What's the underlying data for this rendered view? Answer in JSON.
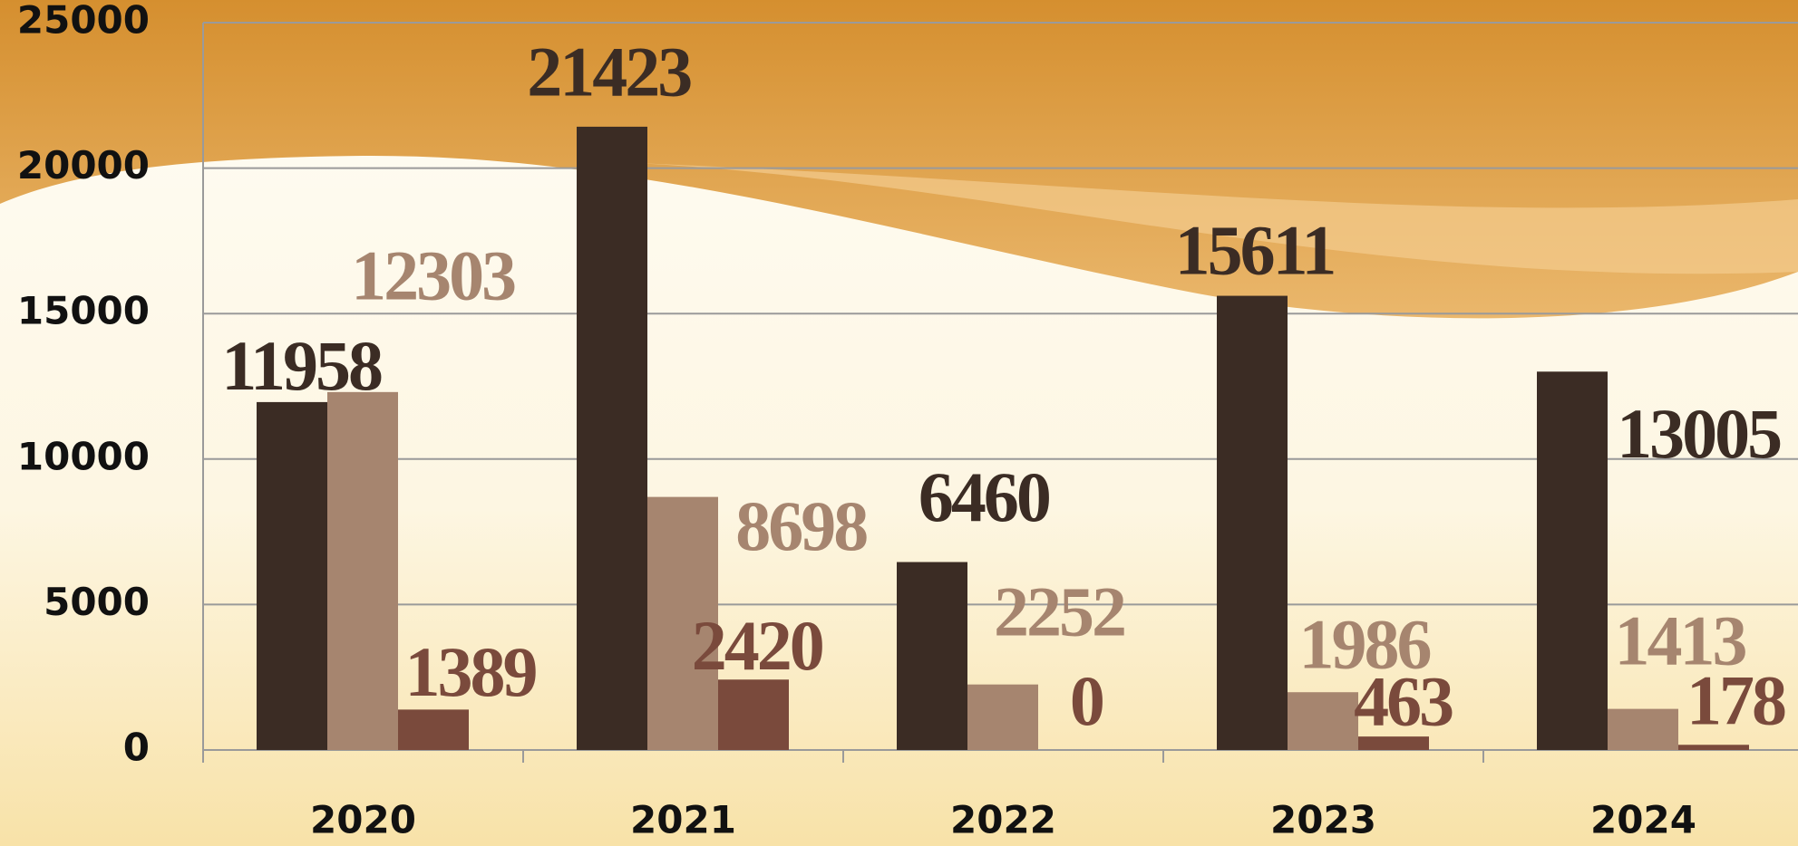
{
  "chart_data": {
    "type": "bar",
    "categories": [
      "2020",
      "2021",
      "2022",
      "2023",
      "2024"
    ],
    "series": [
      {
        "color": "#3b2c24",
        "values": [
          11958,
          21423,
          6460,
          15611,
          13005
        ]
      },
      {
        "color": "#a6856f",
        "values": [
          12303,
          8698,
          2252,
          1986,
          1413
        ]
      },
      {
        "color": "#7a4a3c",
        "values": [
          1389,
          2420,
          0,
          463,
          178
        ]
      }
    ],
    "ylim": [
      0,
      25000
    ],
    "yticks": [
      0,
      5000,
      10000,
      15000,
      20000,
      25000
    ],
    "grid": true
  }
}
